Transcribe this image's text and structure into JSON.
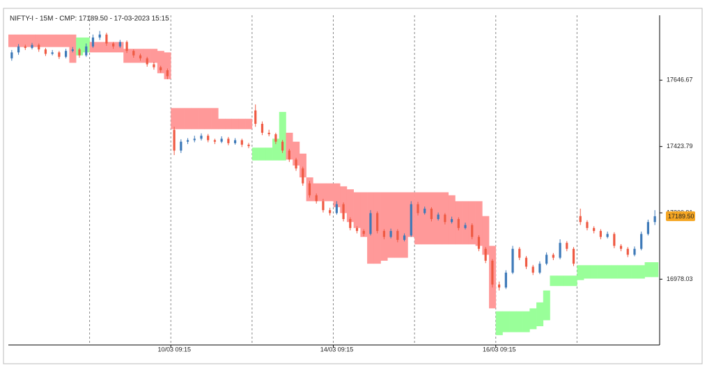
{
  "chart_data": {
    "type": "candlestick",
    "title": "NIFTY-I - 15M -  CMP: 17189.50 - 17-03-2023 15:15",
    "xlim": [
      0,
      96
    ],
    "ylim": [
      16757,
      17888
    ],
    "yticks": [
      17646.67,
      17423.79,
      17200.91,
      16978.03
    ],
    "xticks": [
      {
        "value": 24,
        "label": "10/03 09:15"
      },
      {
        "value": 48,
        "label": "14/03 09:15"
      },
      {
        "value": 72,
        "label": "16/03 09:15"
      }
    ],
    "day_separators": [
      12,
      24,
      36,
      48,
      60,
      72,
      84
    ],
    "up_color": "#3d79b8",
    "down_color": "#ef5a43",
    "cmp_marker": {
      "value": 17189.5,
      "label": "17189.50",
      "color": "#f5a623"
    },
    "candles": [
      [
        17720,
        17748,
        17712,
        17740
      ],
      [
        17740,
        17768,
        17732,
        17760
      ],
      [
        17760,
        17766,
        17748,
        17755
      ],
      [
        17755,
        17772,
        17750,
        17765
      ],
      [
        17765,
        17770,
        17742,
        17750
      ],
      [
        17750,
        17755,
        17728,
        17735
      ],
      [
        17735,
        17748,
        17730,
        17740
      ],
      [
        17740,
        17745,
        17718,
        17725
      ],
      [
        17725,
        17752,
        17720,
        17745
      ],
      [
        17745,
        17758,
        17740,
        17750
      ],
      [
        17750,
        17755,
        17722,
        17730
      ],
      [
        17730,
        17770,
        17725,
        17760
      ],
      [
        17760,
        17800,
        17755,
        17790
      ],
      [
        17790,
        17812,
        17782,
        17800
      ],
      [
        17800,
        17806,
        17762,
        17770
      ],
      [
        17770,
        17775,
        17752,
        17760
      ],
      [
        17760,
        17782,
        17755,
        17775
      ],
      [
        17775,
        17780,
        17738,
        17745
      ],
      [
        17745,
        17750,
        17722,
        17730
      ],
      [
        17730,
        17736,
        17712,
        17720
      ],
      [
        17720,
        17725,
        17692,
        17700
      ],
      [
        17700,
        17708,
        17682,
        17690
      ],
      [
        17690,
        17695,
        17672,
        17680
      ],
      [
        17680,
        17686,
        17650,
        17660
      ],
      [
        17480,
        17490,
        17395,
        17410
      ],
      [
        17410,
        17448,
        17402,
        17440
      ],
      [
        17440,
        17452,
        17432,
        17445
      ],
      [
        17445,
        17460,
        17438,
        17450
      ],
      [
        17450,
        17468,
        17444,
        17460
      ],
      [
        17460,
        17466,
        17438,
        17445
      ],
      [
        17445,
        17450,
        17432,
        17440
      ],
      [
        17440,
        17458,
        17435,
        17450
      ],
      [
        17450,
        17456,
        17428,
        17435
      ],
      [
        17435,
        17452,
        17430,
        17445
      ],
      [
        17445,
        17450,
        17422,
        17430
      ],
      [
        17430,
        17436,
        17418,
        17425
      ],
      [
        17545,
        17565,
        17490,
        17500
      ],
      [
        17500,
        17508,
        17462,
        17470
      ],
      [
        17470,
        17480,
        17458,
        17465
      ],
      [
        17465,
        17470,
        17432,
        17440
      ],
      [
        17440,
        17446,
        17402,
        17410
      ],
      [
        17410,
        17416,
        17372,
        17380
      ],
      [
        17380,
        17386,
        17342,
        17350
      ],
      [
        17350,
        17356,
        17292,
        17300
      ],
      [
        17300,
        17308,
        17252,
        17260
      ],
      [
        17260,
        17266,
        17232,
        17240
      ],
      [
        17240,
        17248,
        17202,
        17210
      ],
      [
        17210,
        17218,
        17192,
        17200
      ],
      [
        17200,
        17240,
        17195,
        17230
      ],
      [
        17230,
        17236,
        17172,
        17180
      ],
      [
        17180,
        17186,
        17142,
        17150
      ],
      [
        17150,
        17156,
        17132,
        17140
      ],
      [
        17140,
        17146,
        17122,
        17130
      ],
      [
        17130,
        17210,
        17125,
        17200
      ],
      [
        17200,
        17206,
        17132,
        17140
      ],
      [
        17140,
        17146,
        17112,
        17120
      ],
      [
        17120,
        17148,
        17115,
        17140
      ],
      [
        17140,
        17146,
        17102,
        17110
      ],
      [
        17110,
        17132,
        17105,
        17125
      ],
      [
        17125,
        17240,
        17120,
        17230
      ],
      [
        17230,
        17238,
        17192,
        17200
      ],
      [
        17200,
        17222,
        17195,
        17215
      ],
      [
        17215,
        17220,
        17172,
        17180
      ],
      [
        17180,
        17202,
        17175,
        17195
      ],
      [
        17195,
        17200,
        17162,
        17170
      ],
      [
        17170,
        17188,
        17165,
        17180
      ],
      [
        17180,
        17186,
        17142,
        17150
      ],
      [
        17150,
        17168,
        17145,
        17160
      ],
      [
        17160,
        17166,
        17112,
        17120
      ],
      [
        17120,
        17126,
        17072,
        17080
      ],
      [
        17080,
        17086,
        17032,
        17040
      ],
      [
        17040,
        17046,
        16950,
        16960
      ],
      [
        16960,
        16970,
        16940,
        16950
      ],
      [
        16950,
        17008,
        16945,
        17000
      ],
      [
        17000,
        17090,
        16995,
        17080
      ],
      [
        17080,
        17086,
        17042,
        17050
      ],
      [
        17050,
        17056,
        17012,
        17020
      ],
      [
        17020,
        17026,
        16992,
        17000
      ],
      [
        17000,
        17038,
        16995,
        17030
      ],
      [
        17030,
        17068,
        17025,
        17060
      ],
      [
        17060,
        17066,
        17042,
        17050
      ],
      [
        17050,
        17112,
        17045,
        17100
      ],
      [
        17100,
        17106,
        17072,
        17080
      ],
      [
        17080,
        17086,
        17022,
        17030
      ],
      [
        17190,
        17215,
        17160,
        17170
      ],
      [
        17170,
        17176,
        17142,
        17150
      ],
      [
        17150,
        17156,
        17132,
        17140
      ],
      [
        17140,
        17146,
        17112,
        17120
      ],
      [
        17120,
        17138,
        17115,
        17130
      ],
      [
        17130,
        17136,
        17082,
        17090
      ],
      [
        17090,
        17096,
        17072,
        17080
      ],
      [
        17080,
        17086,
        17052,
        17060
      ],
      [
        17060,
        17088,
        17055,
        17080
      ],
      [
        17080,
        17138,
        17075,
        17130
      ],
      [
        17130,
        17178,
        17125,
        17170
      ],
      [
        17170,
        17210,
        17160,
        17189.5
      ]
    ],
    "cloud_upper": [
      17800,
      17800,
      17800,
      17800,
      17800,
      17800,
      17800,
      17800,
      17800,
      17800,
      17790,
      17790,
      17775,
      17775,
      17775,
      17775,
      17775,
      17752,
      17752,
      17752,
      17752,
      17752,
      17745,
      17740,
      17553,
      17553,
      17553,
      17553,
      17553,
      17553,
      17553,
      17517,
      17517,
      17517,
      17517,
      17517,
      17420,
      17420,
      17420,
      17450,
      17540,
      17470,
      17440,
      17400,
      17320,
      17300,
      17300,
      17300,
      17300,
      17290,
      17280,
      17270,
      17270,
      17270,
      17270,
      17270,
      17270,
      17270,
      17270,
      17270,
      17270,
      17270,
      17270,
      17270,
      17270,
      17260,
      17240,
      17240,
      17240,
      17240,
      17190,
      17090,
      16870,
      16870,
      16870,
      16870,
      16870,
      16880,
      16900,
      16940,
      16990,
      16990,
      16990,
      16990,
      17025,
      17025,
      17025,
      17025,
      17025,
      17025,
      17025,
      17025,
      17025,
      17025,
      17035,
      17035
    ],
    "cloud_lower": [
      17758,
      17758,
      17758,
      17758,
      17758,
      17758,
      17758,
      17758,
      17758,
      17705,
      17730,
      17740,
      17740,
      17740,
      17740,
      17740,
      17740,
      17705,
      17705,
      17705,
      17705,
      17705,
      17670,
      17650,
      17482,
      17482,
      17482,
      17482,
      17482,
      17482,
      17482,
      17482,
      17482,
      17482,
      17482,
      17482,
      17377,
      17377,
      17377,
      17377,
      17377,
      17380,
      17360,
      17320,
      17240,
      17240,
      17240,
      17240,
      17220,
      17200,
      17170,
      17150,
      17120,
      17030,
      17030,
      17040,
      17050,
      17050,
      17050,
      17120,
      17095,
      17095,
      17095,
      17095,
      17095,
      17095,
      17095,
      17095,
      17095,
      17090,
      17060,
      16880,
      16790,
      16800,
      16800,
      16800,
      16800,
      16810,
      16820,
      16840,
      16955,
      16955,
      16955,
      16955,
      16975,
      16980,
      16980,
      16980,
      16980,
      16980,
      16980,
      16980,
      16980,
      16980,
      16985,
      16985
    ],
    "cloud_colors": [
      "#f99",
      "#f99",
      "#f99",
      "#f99",
      "#f99",
      "#f99",
      "#f99",
      "#f99",
      "#f99",
      "#f99",
      "#9f9",
      "#9f9",
      "#f99",
      "#f99",
      "#f99",
      "#f99",
      "#f99",
      "#f99",
      "#f99",
      "#f99",
      "#f99",
      "#f99",
      "#f99",
      "#f99",
      "#f99",
      "#f99",
      "#f99",
      "#f99",
      "#f99",
      "#f99",
      "#f99",
      "#f99",
      "#f99",
      "#f99",
      "#f99",
      "#f99",
      "#9f9",
      "#9f9",
      "#9f9",
      "#9f9",
      "#9f9",
      "#f99",
      "#f99",
      "#f99",
      "#f99",
      "#f99",
      "#f99",
      "#f99",
      "#f99",
      "#f99",
      "#f99",
      "#f99",
      "#f99",
      "#f99",
      "#f99",
      "#f99",
      "#f99",
      "#f99",
      "#f99",
      "#f99",
      "#f99",
      "#f99",
      "#f99",
      "#f99",
      "#f99",
      "#f99",
      "#f99",
      "#f99",
      "#f99",
      "#f99",
      "#f99",
      "#f99",
      "#9f9",
      "#9f9",
      "#9f9",
      "#9f9",
      "#9f9",
      "#9f9",
      "#9f9",
      "#9f9",
      "#9f9",
      "#9f9",
      "#9f9",
      "#9f9",
      "#9f9",
      "#9f9",
      "#9f9",
      "#9f9",
      "#9f9",
      "#9f9",
      "#9f9",
      "#9f9",
      "#9f9",
      "#9f9",
      "#9f9",
      "#9f9"
    ]
  }
}
